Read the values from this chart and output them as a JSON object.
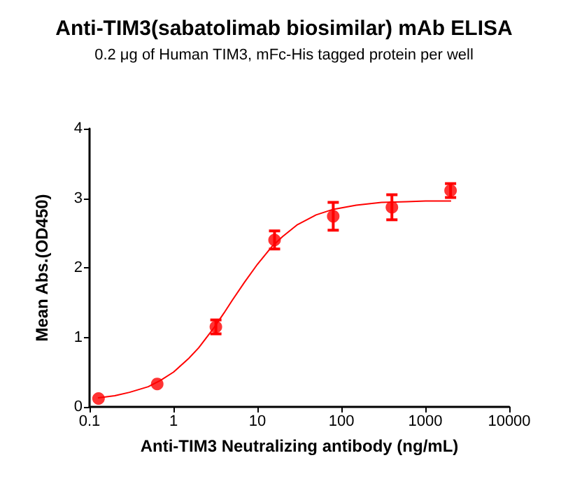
{
  "chart_data": {
    "type": "scatter",
    "title": "Anti-TIM3(sabatolimab biosimilar) mAb ELISA",
    "subtitle": "0.2 μg of Human TIM3, mFc-His tagged protein per well",
    "xlabel": "Anti-TIM3 Neutralizing antibody (ng/mL)",
    "ylabel": "Mean Abs.(OD450)",
    "log": "x",
    "grid": false,
    "marker": "circle",
    "xlim": [
      0.1,
      10000
    ],
    "xticks": [
      0.1,
      1,
      10,
      100,
      1000,
      10000
    ],
    "ylim": [
      0,
      4
    ],
    "yticks": [
      0,
      1,
      2,
      3,
      4
    ],
    "series": [
      {
        "color": "#ff0000",
        "x": [
          0.128,
          0.64,
          3.2,
          16,
          80,
          400,
          2000
        ],
        "values": [
          0.12,
          0.33,
          1.15,
          2.4,
          2.74,
          2.87,
          3.11
        ],
        "errors": [
          null,
          null,
          0.1,
          0.13,
          0.2,
          0.18,
          0.1
        ]
      },
      {
        "type": "line",
        "color": "#ff0000",
        "marker": "none",
        "line_style": "solid",
        "x": [
          0.128,
          0.2,
          0.3,
          0.5,
          0.7,
          1,
          1.5,
          2,
          3,
          4,
          5,
          7,
          10,
          15,
          20,
          30,
          50,
          80,
          150,
          300,
          600,
          1000,
          2000
        ],
        "values": [
          0.13,
          0.16,
          0.21,
          0.29,
          0.38,
          0.5,
          0.69,
          0.85,
          1.13,
          1.35,
          1.53,
          1.79,
          2.05,
          2.31,
          2.45,
          2.62,
          2.76,
          2.84,
          2.9,
          2.94,
          2.95,
          2.96,
          2.96
        ]
      }
    ]
  }
}
